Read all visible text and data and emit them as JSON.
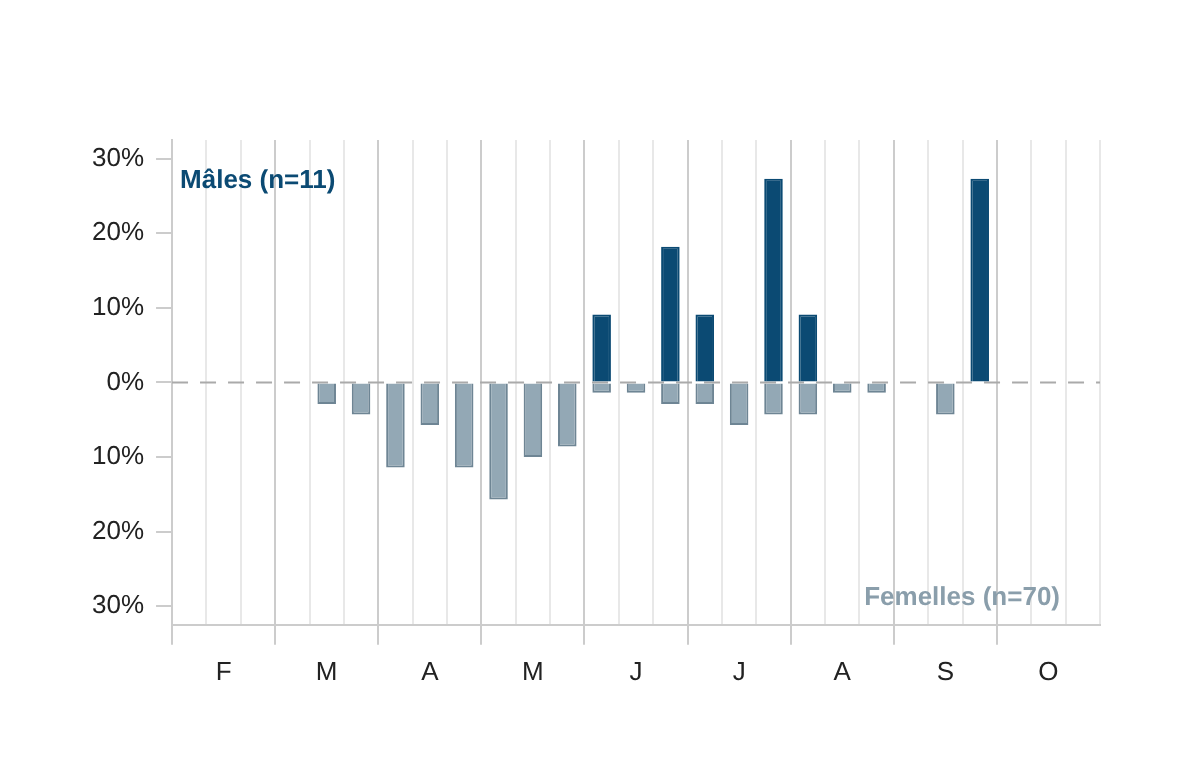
{
  "chart_data": {
    "type": "bar",
    "stacked": true,
    "grid": "x",
    "categories": [
      null,
      "F",
      null,
      null,
      "M",
      null,
      null,
      "A",
      null,
      null,
      "M",
      null,
      null,
      "J",
      null,
      null,
      "J",
      null,
      null,
      "A",
      null,
      null,
      "S",
      null,
      null,
      "O",
      null
    ],
    "series": [
      {
        "name": "Mâles (n=11)",
        "color": "#0b4a73",
        "values": [
          0,
          0,
          0,
          0,
          0,
          0,
          0,
          0,
          0,
          0,
          0,
          0,
          9.1,
          0,
          18.2,
          9.1,
          0,
          27.3,
          9.1,
          0,
          0,
          0,
          0,
          27.3,
          0,
          0,
          0
        ]
      },
      {
        "name": "Femelles (n=70)",
        "color": "#93a8b5",
        "values": [
          0,
          0,
          0,
          0,
          -2.9,
          -4.3,
          -11.4,
          -5.7,
          -11.4,
          -15.7,
          -10.0,
          -8.6,
          -1.4,
          -1.4,
          -2.9,
          -2.9,
          -5.7,
          -4.3,
          -4.3,
          -1.4,
          -1.4,
          0,
          -4.3,
          0,
          0,
          0,
          0
        ]
      }
    ],
    "ylim": [
      -32.5,
      32.5
    ],
    "yticks": [
      {
        "value": -30,
        "label": "30%"
      },
      {
        "value": -20,
        "label": "20%"
      },
      {
        "value": -10,
        "label": "10%"
      },
      {
        "value": 0,
        "label": "0%"
      },
      {
        "value": 10,
        "label": "10%"
      },
      {
        "value": 20,
        "label": "20%"
      },
      {
        "value": 30,
        "label": "30%"
      }
    ],
    "ref_lines": [
      {
        "axis": "y",
        "value": 0,
        "color": "#aaaaaa",
        "line_style": "dashed"
      }
    ]
  }
}
